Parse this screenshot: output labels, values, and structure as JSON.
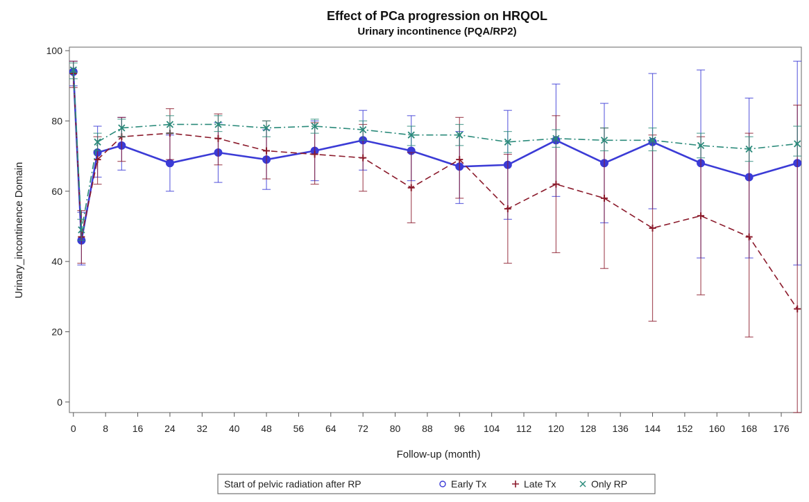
{
  "chart_data": {
    "type": "line",
    "title": "Effect of PCa progression on HRQOL",
    "subtitle": "Urinary incontinence (PQA/RP2)",
    "xlabel": "Follow-up (month)",
    "ylabel": "Urinary_incontinence Domain",
    "xlim": [
      -1,
      181
    ],
    "ylim": [
      -3,
      101
    ],
    "x_ticks": [
      0,
      8,
      16,
      24,
      32,
      40,
      48,
      56,
      64,
      72,
      80,
      88,
      96,
      104,
      112,
      120,
      128,
      136,
      144,
      152,
      160,
      168,
      176
    ],
    "y_ticks": [
      0,
      20,
      40,
      60,
      80,
      100
    ],
    "grid": false,
    "legend": {
      "position": "bottom",
      "title": "Start of pelvic radiation after RP"
    },
    "series": [
      {
        "name": "Early Tx",
        "marker": "o",
        "color": "#3b3bd6",
        "line_style": "solid",
        "x": [
          0,
          2,
          6,
          12,
          24,
          36,
          48,
          60,
          72,
          84,
          96,
          108,
          120,
          132,
          144,
          156,
          168,
          180
        ],
        "y": [
          94,
          46,
          71,
          73,
          68,
          71,
          69,
          71.5,
          74.5,
          71.5,
          67,
          67.5,
          74.5,
          68,
          74,
          68,
          64,
          68
        ],
        "lower": [
          90,
          39,
          64,
          66,
          60,
          62.5,
          60.5,
          63,
          66,
          63,
          56.5,
          52,
          58.5,
          51,
          55,
          41,
          41,
          39
        ],
        "upper": [
          97,
          54,
          78.5,
          81,
          76,
          79.5,
          77.5,
          80,
          83,
          81.5,
          77,
          83,
          90.5,
          85,
          93.5,
          94.5,
          86.5,
          97
        ]
      },
      {
        "name": "Late Tx",
        "marker": "+",
        "color": "#8b1a2b",
        "line_style": "dashed",
        "x": [
          0,
          2,
          6,
          12,
          24,
          36,
          48,
          60,
          72,
          84,
          96,
          108,
          120,
          132,
          144,
          156,
          168,
          180
        ],
        "y": [
          93.5,
          47,
          69,
          75.5,
          76.5,
          75,
          71.5,
          70.5,
          69.5,
          61,
          69,
          55,
          62,
          58,
          49.5,
          53,
          47,
          26.5
        ],
        "lower": [
          89.5,
          39.5,
          62,
          68.5,
          69,
          67.5,
          63.5,
          62,
          60,
          51,
          58,
          39.5,
          42.5,
          38,
          23,
          30.5,
          18.5,
          -3
        ],
        "upper": [
          97,
          54.5,
          75.5,
          81,
          83.5,
          82,
          80,
          79.5,
          79,
          71,
          81,
          70.5,
          81.5,
          78,
          76,
          75.5,
          76.5,
          84.5
        ]
      },
      {
        "name": "Only RP",
        "marker": "x",
        "color": "#2a8a7a",
        "line_style": "dashdot",
        "x": [
          0,
          2,
          6,
          12,
          24,
          36,
          48,
          60,
          72,
          84,
          96,
          108,
          120,
          132,
          144,
          156,
          168,
          180
        ],
        "y": [
          94.5,
          49,
          74,
          78,
          79,
          79,
          78,
          78.5,
          77.5,
          76,
          76,
          74,
          75,
          74.5,
          74.5,
          73,
          72,
          73.5
        ],
        "lower": [
          92,
          46,
          71.5,
          75.5,
          76.5,
          77,
          75.5,
          76.5,
          74.5,
          73,
          73,
          71,
          72.5,
          71.5,
          71.5,
          69.5,
          68.5,
          70
        ],
        "upper": [
          96.5,
          52,
          76.5,
          80.5,
          81.5,
          81.5,
          80,
          80.5,
          80,
          78.5,
          79,
          77,
          77.5,
          78,
          78,
          76.5,
          75.5,
          78.5
        ]
      }
    ]
  }
}
